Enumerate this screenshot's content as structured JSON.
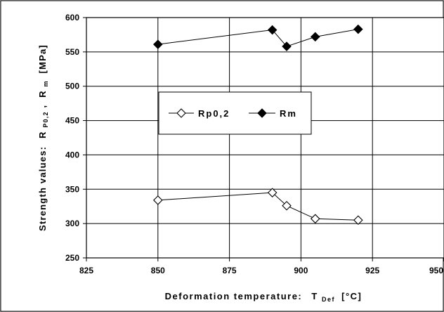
{
  "chart_data": {
    "type": "line",
    "xlabel": "Deformation temperature:",
    "xlabel_symbol": "T",
    "xlabel_subscript": "Def",
    "xlabel_unit": "[°C]",
    "ylabel_prefix": "Strength values:",
    "ylabel_r1": "R",
    "ylabel_r1_sub": "P0,2",
    "ylabel_sep": ",",
    "ylabel_r2": "R",
    "ylabel_r2_sub": "m",
    "ylabel_unit": "[MPa]",
    "xlim": [
      825,
      950
    ],
    "ylim": [
      250,
      600
    ],
    "xticks": [
      825,
      850,
      875,
      900,
      925,
      950
    ],
    "yticks": [
      250,
      300,
      350,
      400,
      450,
      500,
      550,
      600
    ],
    "grid": true,
    "legend_position": "center-left",
    "series": [
      {
        "name": "Rp0,2",
        "marker": "diamond-open",
        "color": "#000000",
        "x": [
          850,
          890,
          895,
          905,
          920
        ],
        "y": [
          334,
          345,
          326,
          307,
          305
        ]
      },
      {
        "name": "Rm",
        "marker": "diamond-filled",
        "color": "#000000",
        "x": [
          850,
          890,
          895,
          905,
          920
        ],
        "y": [
          561,
          582,
          558,
          572,
          583
        ]
      }
    ]
  }
}
